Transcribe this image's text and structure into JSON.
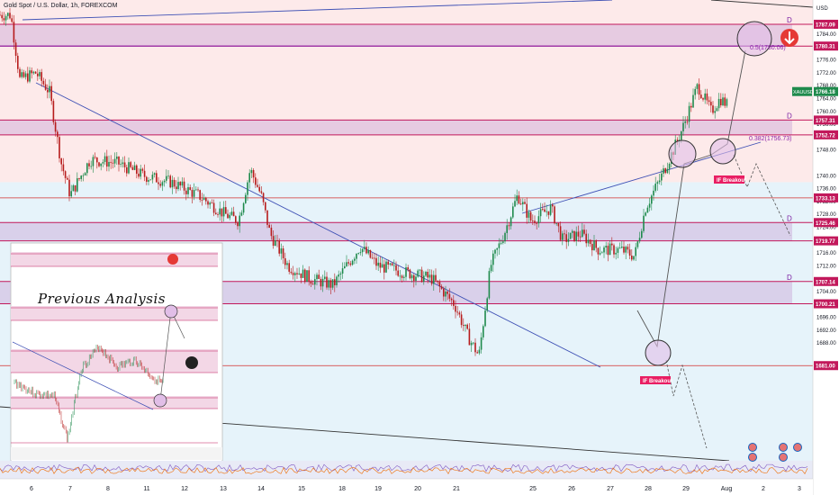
{
  "header": {
    "title": "Gold Spot / U.S. Dollar, 1h, FOREXCOM"
  },
  "overlay": {
    "previous_label": "Previous Analysis"
  },
  "price_axis": {
    "currency": "USD"
  },
  "chart_data": {
    "type": "candlestick",
    "symbol": "XAUUSD",
    "timeframe": "1h",
    "ylim": [
      1674,
      1794
    ],
    "x_ticks": [
      "6",
      "7",
      "8",
      "11",
      "12",
      "13",
      "14",
      "15",
      "18",
      "19",
      "20",
      "21",
      "25",
      "26",
      "27",
      "28",
      "29",
      "Aug",
      "2",
      "3"
    ],
    "y_ticks": [
      1688,
      1692,
      1696,
      1704,
      1712,
      1716,
      1724,
      1728,
      1732,
      1736,
      1740,
      1748,
      1752,
      1756,
      1760,
      1764,
      1768,
      1772,
      1776,
      1784
    ],
    "zones": [
      {
        "top": 1787.09,
        "bottom": 1780.31,
        "label_top": "1787.09",
        "label_bottom": "1780.31",
        "color": "#c9a7d8",
        "tag": "D"
      },
      {
        "top": 1757.31,
        "bottom": 1752.72,
        "label_top": "1757.31",
        "label_bottom": "1752.72",
        "color": "#c9a7d8",
        "tag": "D"
      },
      {
        "top": 1725.46,
        "bottom": 1719.77,
        "label_top": "1725.46",
        "label_bottom": "1719.77",
        "color": "#c9a7d8",
        "tag": "D"
      },
      {
        "top": 1707.14,
        "bottom": 1700.21,
        "label_top": "1707.14",
        "label_bottom": "1700.21",
        "color": "#c9a7d8",
        "tag": "D"
      }
    ],
    "levels": [
      {
        "value": 1733.13,
        "label": "1733.13"
      },
      {
        "value": 1681.0,
        "label": "1681.00"
      }
    ],
    "current_price": {
      "symbol": "XAUUSD",
      "value": 1766.18,
      "label": "1766.18"
    },
    "fib_levels": [
      {
        "ratio": "0.5",
        "value": 1780.06,
        "label": "0.5(1780.06)"
      },
      {
        "ratio": "0.382",
        "value": 1756.73,
        "label": "0.382(1756.73)"
      }
    ],
    "annotations": [
      {
        "text": "IF Breakout",
        "near": 1748
      },
      {
        "text": "IF Breakout",
        "near": 1694
      }
    ],
    "path": [
      [
        0,
        1790
      ],
      [
        12,
        1790
      ],
      [
        22,
        1770
      ],
      [
        40,
        1772
      ],
      [
        55,
        1766
      ],
      [
        68,
        1744
      ],
      [
        78,
        1734
      ],
      [
        100,
        1745
      ],
      [
        130,
        1744
      ],
      [
        160,
        1740
      ],
      [
        190,
        1738
      ],
      [
        220,
        1734
      ],
      [
        250,
        1728
      ],
      [
        265,
        1726
      ],
      [
        278,
        1742
      ],
      [
        290,
        1734
      ],
      [
        300,
        1722
      ],
      [
        320,
        1712
      ],
      [
        345,
        1708
      ],
      [
        370,
        1706
      ],
      [
        400,
        1718
      ],
      [
        420,
        1712
      ],
      [
        450,
        1710
      ],
      [
        480,
        1708
      ],
      [
        505,
        1700
      ],
      [
        520,
        1690
      ],
      [
        532,
        1684
      ],
      [
        545,
        1712
      ],
      [
        560,
        1722
      ],
      [
        575,
        1734
      ],
      [
        590,
        1726
      ],
      [
        612,
        1730
      ],
      [
        625,
        1720
      ],
      [
        645,
        1722
      ],
      [
        665,
        1717
      ],
      [
        690,
        1717
      ],
      [
        705,
        1715
      ],
      [
        717,
        1730
      ],
      [
        735,
        1740
      ],
      [
        748,
        1748
      ],
      [
        760,
        1756
      ],
      [
        775,
        1768
      ],
      [
        790,
        1760
      ],
      [
        800,
        1764
      ],
      [
        808,
        1762
      ]
    ]
  }
}
